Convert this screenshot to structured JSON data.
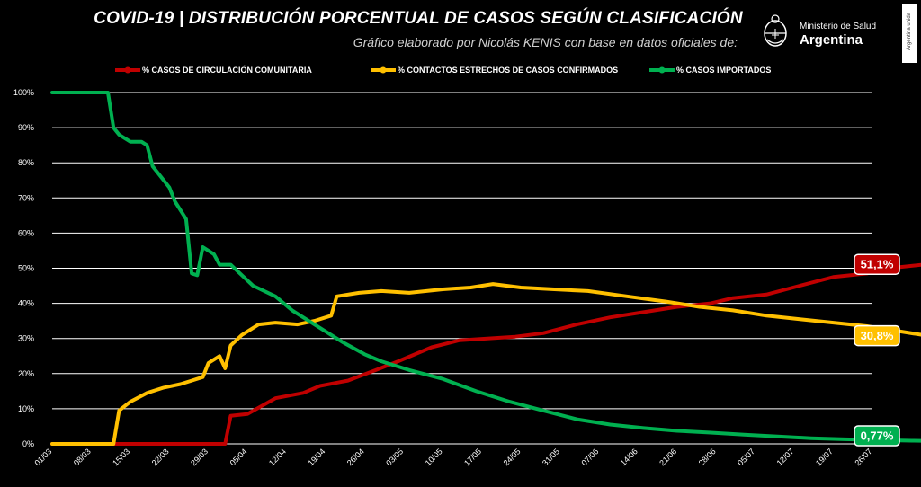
{
  "header": {
    "title": "COVID-19  |  DISTRIBUCIÓN PORCENTUAL DE CASOS SEGÚN CLASIFICACIÓN",
    "subtitle": "Gráfico elaborado por Nicolás KENIS con base en datos oficiales de:",
    "logo_ministry": "Ministerio de Salud",
    "logo_country": "Argentina",
    "side_tag": "Argentina unida"
  },
  "colors": {
    "comunitaria": "#c00000",
    "contactos": "#ffc000",
    "importados": "#00b050",
    "grid": "#ffffff"
  },
  "chart_data": {
    "type": "line",
    "title": "COVID-19  |  DISTRIBUCIÓN PORCENTUAL DE CASOS SEGÚN CLASIFICACIÓN",
    "x_ticks": [
      "01/03",
      "08/03",
      "15/03",
      "22/03",
      "29/03",
      "05/04",
      "12/04",
      "19/04",
      "26/04",
      "03/05",
      "10/05",
      "17/05",
      "24/05",
      "31/05",
      "07/06",
      "14/06",
      "21/06",
      "28/06",
      "05/07",
      "12/07",
      "19/07",
      "26/07"
    ],
    "y_ticks": [
      "0%",
      "10%",
      "20%",
      "30%",
      "40%",
      "50%",
      "60%",
      "70%",
      "80%",
      "90%",
      "100%"
    ],
    "ylim": [
      0,
      100
    ],
    "x_unit": "days since 01/03",
    "legend_position": "top",
    "series": [
      {
        "name": "% CASOS DE CIRCULACIÓN COMUNITARIA",
        "key": "comunitaria",
        "end_label": "51,1%",
        "points": [
          [
            0,
            0
          ],
          [
            31,
            0
          ],
          [
            32,
            8
          ],
          [
            35,
            8.5
          ],
          [
            40,
            13
          ],
          [
            45,
            14.5
          ],
          [
            48,
            16.5
          ],
          [
            53,
            18
          ],
          [
            58,
            21
          ],
          [
            62,
            23.5
          ],
          [
            68,
            27.5
          ],
          [
            73,
            29.5
          ],
          [
            78,
            30
          ],
          [
            83,
            30.5
          ],
          [
            88,
            31.5
          ],
          [
            94,
            34
          ],
          [
            100,
            36
          ],
          [
            106,
            37.5
          ],
          [
            112,
            39
          ],
          [
            118,
            40
          ],
          [
            122,
            41.5
          ],
          [
            128,
            42.5
          ],
          [
            134,
            45
          ],
          [
            140,
            47.5
          ],
          [
            146,
            48.5
          ],
          [
            150,
            50
          ],
          [
            156,
            51
          ],
          [
            159,
            51.1
          ]
        ]
      },
      {
        "name": "% CONTACTOS ESTRECHOS DE CASOS CONFIRMADOS",
        "key": "contactos",
        "end_label": "30,8%",
        "points": [
          [
            0,
            0
          ],
          [
            7,
            0
          ],
          [
            11,
            0
          ],
          [
            12,
            9.5
          ],
          [
            14,
            12
          ],
          [
            17,
            14.5
          ],
          [
            20,
            16
          ],
          [
            23,
            17
          ],
          [
            25,
            18
          ],
          [
            27,
            19
          ],
          [
            28,
            23
          ],
          [
            30,
            25
          ],
          [
            31,
            21.5
          ],
          [
            32,
            28
          ],
          [
            34,
            31
          ],
          [
            37,
            34
          ],
          [
            40,
            34.5
          ],
          [
            44,
            34
          ],
          [
            47,
            35
          ],
          [
            50,
            36.5
          ],
          [
            51,
            42
          ],
          [
            55,
            43
          ],
          [
            59,
            43.5
          ],
          [
            64,
            43
          ],
          [
            70,
            44
          ],
          [
            75,
            44.5
          ],
          [
            79,
            45.5
          ],
          [
            84,
            44.5
          ],
          [
            90,
            44
          ],
          [
            96,
            43.5
          ],
          [
            103,
            42
          ],
          [
            110,
            40.5
          ],
          [
            116,
            39
          ],
          [
            122,
            38
          ],
          [
            128,
            36.5
          ],
          [
            134,
            35.5
          ],
          [
            140,
            34.5
          ],
          [
            146,
            33.5
          ],
          [
            152,
            32
          ],
          [
            156,
            31
          ],
          [
            159,
            30.8
          ]
        ]
      },
      {
        "name": "% CASOS IMPORTADOS",
        "key": "importados",
        "end_label": "0,77%",
        "points": [
          [
            0,
            100
          ],
          [
            9,
            100
          ],
          [
            10,
            100
          ],
          [
            11,
            90
          ],
          [
            12,
            88
          ],
          [
            14,
            86
          ],
          [
            16,
            86
          ],
          [
            17,
            85
          ],
          [
            18,
            79
          ],
          [
            19,
            77
          ],
          [
            21,
            73
          ],
          [
            22,
            69
          ],
          [
            24,
            64
          ],
          [
            25,
            48.5
          ],
          [
            26,
            48
          ],
          [
            27,
            56
          ],
          [
            29,
            54
          ],
          [
            30,
            51
          ],
          [
            32,
            51
          ],
          [
            34,
            48
          ],
          [
            36,
            45
          ],
          [
            40,
            42
          ],
          [
            43,
            38
          ],
          [
            47,
            34
          ],
          [
            52,
            29
          ],
          [
            56,
            25.5
          ],
          [
            59,
            23.5
          ],
          [
            64,
            21
          ],
          [
            70,
            18.5
          ],
          [
            76,
            15
          ],
          [
            82,
            12
          ],
          [
            88,
            9.5
          ],
          [
            94,
            7
          ],
          [
            100,
            5.5
          ],
          [
            106,
            4.5
          ],
          [
            112,
            3.7
          ],
          [
            118,
            3.2
          ],
          [
            124,
            2.6
          ],
          [
            130,
            2.1
          ],
          [
            136,
            1.6
          ],
          [
            142,
            1.3
          ],
          [
            148,
            1.1
          ],
          [
            154,
            0.9
          ],
          [
            159,
            0.77
          ]
        ]
      }
    ]
  }
}
